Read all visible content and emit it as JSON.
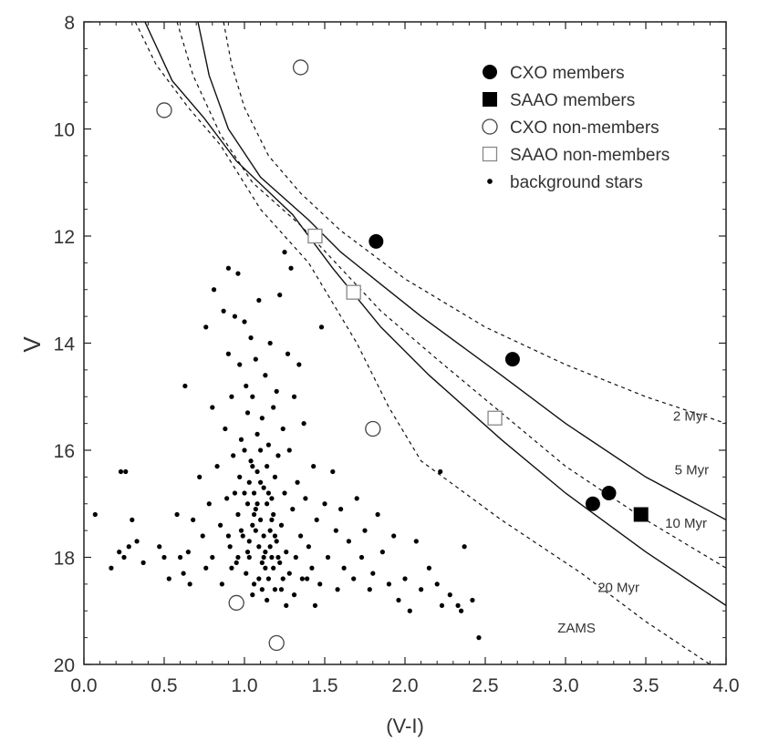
{
  "chart_data": {
    "type": "scatter",
    "xlabel": "(V-I)",
    "ylabel": "V",
    "xlim": [
      0.0,
      4.0
    ],
    "ylim": [
      20,
      8
    ],
    "y_inverted": true,
    "grid": false,
    "legend_placement": "top-right",
    "xticks": [
      "0.0",
      "0.5",
      "1.0",
      "1.5",
      "2.0",
      "2.5",
      "3.0",
      "3.5",
      "4.0"
    ],
    "yticks": [
      "8",
      "10",
      "12",
      "14",
      "16",
      "18",
      "20"
    ],
    "legend": [
      {
        "label": "CXO members",
        "marker": "filled-circle"
      },
      {
        "label": "SAAO members",
        "marker": "filled-square"
      },
      {
        "label": "CXO non-members",
        "marker": "open-circle"
      },
      {
        "label": "SAAO non-members",
        "marker": "open-square"
      },
      {
        "label": "background stars",
        "marker": "small-dot"
      }
    ],
    "series": [
      {
        "name": "CXO members",
        "marker": "filled-circle",
        "points": [
          [
            1.82,
            12.1
          ],
          [
            2.67,
            14.3
          ],
          [
            3.17,
            17.0
          ],
          [
            3.27,
            16.8
          ]
        ]
      },
      {
        "name": "SAAO members",
        "marker": "filled-square",
        "points": [
          [
            3.47,
            17.2
          ]
        ]
      },
      {
        "name": "CXO non-members",
        "marker": "open-circle",
        "points": [
          [
            1.35,
            8.85
          ],
          [
            0.5,
            9.65
          ],
          [
            1.8,
            15.6
          ],
          [
            0.95,
            18.85
          ],
          [
            1.2,
            19.6
          ]
        ]
      },
      {
        "name": "SAAO non-members",
        "marker": "open-square",
        "points": [
          [
            1.44,
            12.0
          ],
          [
            1.68,
            13.05
          ],
          [
            2.56,
            15.4
          ]
        ]
      },
      {
        "name": "background stars",
        "marker": "small-dot",
        "points": [
          [
            0.07,
            17.2
          ],
          [
            0.17,
            18.2
          ],
          [
            0.22,
            17.9
          ],
          [
            0.23,
            16.4
          ],
          [
            0.26,
            16.4
          ],
          [
            0.25,
            18.0
          ],
          [
            0.28,
            17.8
          ],
          [
            0.3,
            17.3
          ],
          [
            0.33,
            17.7
          ],
          [
            0.37,
            18.1
          ],
          [
            0.47,
            17.8
          ],
          [
            0.5,
            18.0
          ],
          [
            0.53,
            18.4
          ],
          [
            0.58,
            17.2
          ],
          [
            0.6,
            18.0
          ],
          [
            0.62,
            18.3
          ],
          [
            0.65,
            17.9
          ],
          [
            0.66,
            18.5
          ],
          [
            0.63,
            14.8
          ],
          [
            0.68,
            17.3
          ],
          [
            0.72,
            16.5
          ],
          [
            0.74,
            17.6
          ],
          [
            0.76,
            18.2
          ],
          [
            0.78,
            17.0
          ],
          [
            0.8,
            18.0
          ],
          [
            0.76,
            13.7
          ],
          [
            0.8,
            15.2
          ],
          [
            0.81,
            13.0
          ],
          [
            0.83,
            16.3
          ],
          [
            0.85,
            17.4
          ],
          [
            0.86,
            18.5
          ],
          [
            0.87,
            13.4
          ],
          [
            0.88,
            15.6
          ],
          [
            0.89,
            16.9
          ],
          [
            0.9,
            12.6
          ],
          [
            0.9,
            14.2
          ],
          [
            0.91,
            17.8
          ],
          [
            0.92,
            15.0
          ],
          [
            0.93,
            16.1
          ],
          [
            0.94,
            13.5
          ],
          [
            0.95,
            18.1
          ],
          [
            0.96,
            12.7
          ],
          [
            0.96,
            17.2
          ],
          [
            0.97,
            14.4
          ],
          [
            0.97,
            16.5
          ],
          [
            0.98,
            15.8
          ],
          [
            0.99,
            17.6
          ],
          [
            1.0,
            13.6
          ],
          [
            1.0,
            16.0
          ],
          [
            1.01,
            18.3
          ],
          [
            1.01,
            14.8
          ],
          [
            1.02,
            17.0
          ],
          [
            1.02,
            15.3
          ],
          [
            1.03,
            16.6
          ],
          [
            1.03,
            18.0
          ],
          [
            1.04,
            13.9
          ],
          [
            1.04,
            16.2
          ],
          [
            1.05,
            17.4
          ],
          [
            1.05,
            15.0
          ],
          [
            1.06,
            16.8
          ],
          [
            1.06,
            18.5
          ],
          [
            1.07,
            14.3
          ],
          [
            1.07,
            17.1
          ],
          [
            1.08,
            15.7
          ],
          [
            1.08,
            16.4
          ],
          [
            1.09,
            17.8
          ],
          [
            1.09,
            13.2
          ],
          [
            1.1,
            16.0
          ],
          [
            1.1,
            17.3
          ],
          [
            1.11,
            18.1
          ],
          [
            1.11,
            15.4
          ],
          [
            1.12,
            16.7
          ],
          [
            1.12,
            17.6
          ],
          [
            1.13,
            14.6
          ],
          [
            1.13,
            18.2
          ],
          [
            1.14,
            16.3
          ],
          [
            1.14,
            17.0
          ],
          [
            1.15,
            15.9
          ],
          [
            1.15,
            18.4
          ],
          [
            1.16,
            17.5
          ],
          [
            1.16,
            14.0
          ],
          [
            1.17,
            16.9
          ],
          [
            1.17,
            18.0
          ],
          [
            1.18,
            15.2
          ],
          [
            1.18,
            17.2
          ],
          [
            1.19,
            16.5
          ],
          [
            1.19,
            18.6
          ],
          [
            1.2,
            14.9
          ],
          [
            1.2,
            17.7
          ],
          [
            1.21,
            16.1
          ],
          [
            1.22,
            18.1
          ],
          [
            1.22,
            13.1
          ],
          [
            1.23,
            17.4
          ],
          [
            1.24,
            15.6
          ],
          [
            1.24,
            18.4
          ],
          [
            1.25,
            12.3
          ],
          [
            1.25,
            16.8
          ],
          [
            1.26,
            17.9
          ],
          [
            1.27,
            14.2
          ],
          [
            1.28,
            16.0
          ],
          [
            1.28,
            18.3
          ],
          [
            1.29,
            12.6
          ],
          [
            1.3,
            17.1
          ],
          [
            1.31,
            15.0
          ],
          [
            1.32,
            18.0
          ],
          [
            1.33,
            16.6
          ],
          [
            1.34,
            14.4
          ],
          [
            1.35,
            17.6
          ],
          [
            1.36,
            18.4
          ],
          [
            1.37,
            15.5
          ],
          [
            1.38,
            16.9
          ],
          [
            1.4,
            17.8
          ],
          [
            1.42,
            18.2
          ],
          [
            1.43,
            16.3
          ],
          [
            1.45,
            17.3
          ],
          [
            1.47,
            18.5
          ],
          [
            1.48,
            13.7
          ],
          [
            1.5,
            17.0
          ],
          [
            1.52,
            18.0
          ],
          [
            1.55,
            16.4
          ],
          [
            1.57,
            17.5
          ],
          [
            1.58,
            18.6
          ],
          [
            1.6,
            17.1
          ],
          [
            1.62,
            18.2
          ],
          [
            1.65,
            17.7
          ],
          [
            1.68,
            18.4
          ],
          [
            1.7,
            16.9
          ],
          [
            1.73,
            18.0
          ],
          [
            1.75,
            17.5
          ],
          [
            1.78,
            18.6
          ],
          [
            1.8,
            18.3
          ],
          [
            1.83,
            17.2
          ],
          [
            1.86,
            17.9
          ],
          [
            1.9,
            18.5
          ],
          [
            1.93,
            17.6
          ],
          [
            1.96,
            18.8
          ],
          [
            2.0,
            18.4
          ],
          [
            2.03,
            19.0
          ],
          [
            2.07,
            17.7
          ],
          [
            2.1,
            18.6
          ],
          [
            2.15,
            18.2
          ],
          [
            2.2,
            18.5
          ],
          [
            2.22,
            16.4
          ],
          [
            2.23,
            18.9
          ],
          [
            2.28,
            18.7
          ],
          [
            2.33,
            18.9
          ],
          [
            2.35,
            19.0
          ],
          [
            2.37,
            17.8
          ],
          [
            2.42,
            18.8
          ],
          [
            2.46,
            19.5
          ],
          [
            1.02,
            17.9
          ],
          [
            1.05,
            18.7
          ],
          [
            1.07,
            17.5
          ],
          [
            1.09,
            18.4
          ],
          [
            1.12,
            18.0
          ],
          [
            1.14,
            18.8
          ],
          [
            1.16,
            17.8
          ],
          [
            1.18,
            18.2
          ],
          [
            1.21,
            18.0
          ],
          [
            1.23,
            18.6
          ],
          [
            0.98,
            17.5
          ],
          [
            0.96,
            18.0
          ],
          [
            0.94,
            16.8
          ],
          [
            0.92,
            18.2
          ],
          [
            0.9,
            17.6
          ],
          [
            1.26,
            18.9
          ],
          [
            1.31,
            18.7
          ],
          [
            1.39,
            18.4
          ],
          [
            1.44,
            18.9
          ],
          [
            1.05,
            16.3
          ],
          [
            1.08,
            17.0
          ],
          [
            1.1,
            16.6
          ],
          [
            1.03,
            17.7
          ],
          [
            1.13,
            17.9
          ],
          [
            1.15,
            16.8
          ],
          [
            1.17,
            17.3
          ],
          [
            1.19,
            17.6
          ],
          [
            1.11,
            18.6
          ],
          [
            1.06,
            17.2
          ],
          [
            1.0,
            16.8
          ]
        ]
      }
    ],
    "curves": [
      {
        "name": "2 Myr",
        "label": "2 Myr",
        "style": "dashed",
        "points": [
          [
            0.87,
            8.0
          ],
          [
            0.92,
            8.8
          ],
          [
            1.0,
            9.6
          ],
          [
            1.15,
            10.5
          ],
          [
            1.35,
            11.2
          ],
          [
            1.6,
            11.9
          ],
          [
            2.0,
            12.8
          ],
          [
            2.5,
            13.7
          ],
          [
            3.0,
            14.4
          ],
          [
            3.5,
            15.0
          ],
          [
            4.0,
            15.5
          ]
        ]
      },
      {
        "name": "5 Myr",
        "label": "5 Myr",
        "style": "solid",
        "points": [
          [
            0.71,
            8.0
          ],
          [
            0.78,
            9.0
          ],
          [
            0.9,
            10.0
          ],
          [
            1.1,
            10.9
          ],
          [
            1.4,
            11.7
          ],
          [
            1.6,
            12.3
          ],
          [
            1.85,
            12.9
          ],
          [
            2.1,
            13.5
          ],
          [
            2.6,
            14.6
          ],
          [
            3.0,
            15.5
          ],
          [
            3.5,
            16.5
          ],
          [
            4.0,
            17.3
          ]
        ]
      },
      {
        "name": "10 Myr",
        "label": "10 Myr",
        "style": "dashed",
        "points": [
          [
            0.58,
            8.0
          ],
          [
            0.68,
            9.0
          ],
          [
            0.85,
            10.1
          ],
          [
            1.05,
            11.0
          ],
          [
            1.35,
            11.8
          ],
          [
            1.6,
            12.6
          ],
          [
            1.85,
            13.4
          ],
          [
            2.2,
            14.3
          ],
          [
            2.6,
            15.3
          ],
          [
            3.0,
            16.3
          ],
          [
            3.5,
            17.3
          ],
          [
            4.0,
            18.2
          ]
        ]
      },
      {
        "name": "20 Myr",
        "label": "20 Myr",
        "style": "solid",
        "points": [
          [
            0.38,
            8.0
          ],
          [
            0.55,
            9.1
          ],
          [
            0.75,
            9.8
          ],
          [
            0.95,
            10.6
          ],
          [
            1.3,
            11.6
          ],
          [
            1.55,
            12.6
          ],
          [
            1.85,
            13.7
          ],
          [
            2.15,
            14.6
          ],
          [
            2.6,
            15.8
          ],
          [
            3.0,
            16.8
          ],
          [
            3.5,
            17.9
          ],
          [
            4.0,
            18.9
          ]
        ]
      },
      {
        "name": "ZAMS",
        "label": "ZAMS",
        "style": "dashed",
        "points": [
          [
            0.32,
            8.0
          ],
          [
            0.45,
            8.8
          ],
          [
            0.65,
            9.6
          ],
          [
            0.85,
            10.3
          ],
          [
            1.1,
            11.5
          ],
          [
            1.4,
            12.5
          ],
          [
            1.7,
            14.0
          ],
          [
            1.9,
            15.2
          ],
          [
            2.1,
            16.2
          ],
          [
            2.6,
            17.3
          ],
          [
            3.1,
            18.3
          ],
          [
            3.5,
            19.2
          ],
          [
            3.9,
            20.0
          ]
        ]
      }
    ]
  }
}
